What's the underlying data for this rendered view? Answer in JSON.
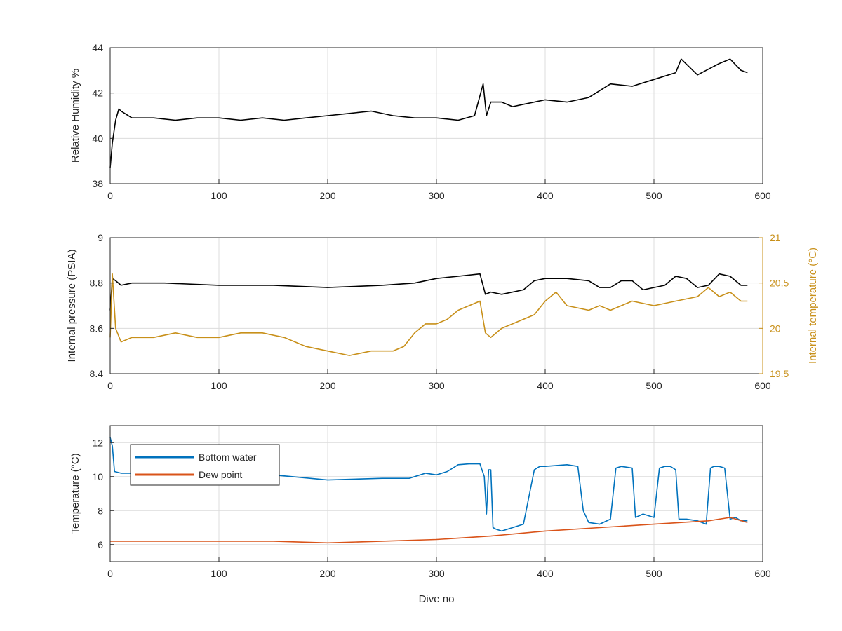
{
  "chart_data": [
    {
      "type": "line",
      "xlabel": "",
      "ylabel": "Relative Humidity %",
      "xlim": [
        0,
        600
      ],
      "ylim": [
        38,
        44
      ],
      "xticks": [
        0,
        100,
        200,
        300,
        400,
        500,
        600
      ],
      "yticks": [
        38,
        40,
        42,
        44
      ],
      "grid": true,
      "series": [
        {
          "color": "#000000",
          "x": [
            0,
            2,
            5,
            8,
            10,
            20,
            40,
            60,
            80,
            100,
            120,
            140,
            160,
            180,
            200,
            220,
            240,
            260,
            280,
            300,
            320,
            335,
            343,
            346,
            350,
            360,
            370,
            380,
            400,
            420,
            440,
            460,
            480,
            500,
            520,
            525,
            540,
            560,
            570,
            580,
            586
          ],
          "y": [
            38.7,
            39.8,
            40.8,
            41.3,
            41.2,
            40.9,
            40.9,
            40.8,
            40.9,
            40.9,
            40.8,
            40.9,
            40.8,
            40.9,
            41.0,
            41.1,
            41.2,
            41.0,
            40.9,
            40.9,
            40.8,
            41.0,
            42.4,
            41.0,
            41.6,
            41.6,
            41.4,
            41.5,
            41.7,
            41.6,
            41.8,
            42.4,
            42.3,
            42.6,
            42.9,
            43.5,
            42.8,
            43.3,
            43.5,
            43.0,
            42.9
          ]
        }
      ]
    },
    {
      "type": "line",
      "xlabel": "",
      "ylabel": "Internal pressure (PSIA)",
      "ylabel_right": "Internal temperature (°C)",
      "xlim": [
        0,
        600
      ],
      "ylim": [
        8.4,
        9.0
      ],
      "ylim_right": [
        19.5,
        21.0
      ],
      "xticks": [
        0,
        100,
        200,
        300,
        400,
        500,
        600
      ],
      "yticks": [
        8.4,
        8.6,
        8.8,
        9.0
      ],
      "yticks_right": [
        19.5,
        20,
        20.5,
        21
      ],
      "grid": true,
      "series": [
        {
          "color": "#000000",
          "axis": "left",
          "x": [
            0,
            2,
            5,
            10,
            20,
            50,
            100,
            150,
            200,
            250,
            280,
            300,
            320,
            340,
            345,
            350,
            360,
            380,
            390,
            400,
            420,
            440,
            450,
            460,
            470,
            480,
            490,
            500,
            510,
            520,
            530,
            540,
            550,
            560,
            570,
            580,
            586
          ],
          "y": [
            8.68,
            8.82,
            8.81,
            8.79,
            8.8,
            8.8,
            8.79,
            8.79,
            8.78,
            8.79,
            8.8,
            8.82,
            8.83,
            8.84,
            8.75,
            8.76,
            8.75,
            8.77,
            8.81,
            8.82,
            8.82,
            8.81,
            8.78,
            8.78,
            8.81,
            8.81,
            8.77,
            8.78,
            8.79,
            8.83,
            8.82,
            8.78,
            8.79,
            8.84,
            8.83,
            8.79,
            8.79
          ]
        },
        {
          "color": "#c8901a",
          "axis": "right",
          "x": [
            0,
            2,
            5,
            10,
            20,
            40,
            60,
            80,
            100,
            120,
            140,
            160,
            170,
            180,
            200,
            220,
            240,
            260,
            270,
            280,
            290,
            300,
            310,
            320,
            330,
            340,
            345,
            350,
            360,
            380,
            390,
            400,
            410,
            420,
            440,
            450,
            460,
            480,
            500,
            520,
            540,
            550,
            560,
            570,
            580,
            586
          ],
          "y": [
            19.9,
            20.6,
            20.0,
            19.85,
            19.9,
            19.9,
            19.95,
            19.9,
            19.9,
            19.95,
            19.95,
            19.9,
            19.85,
            19.8,
            19.75,
            19.7,
            19.75,
            19.75,
            19.8,
            19.95,
            20.05,
            20.05,
            20.1,
            20.2,
            20.25,
            20.3,
            19.95,
            19.9,
            20.0,
            20.1,
            20.15,
            20.3,
            20.4,
            20.25,
            20.2,
            20.25,
            20.2,
            20.3,
            20.25,
            20.3,
            20.35,
            20.45,
            20.35,
            20.4,
            20.3,
            20.3
          ]
        }
      ]
    },
    {
      "type": "line",
      "xlabel": "Dive no",
      "ylabel": "Temperature (°C)",
      "xlim": [
        0,
        600
      ],
      "ylim": [
        5,
        13
      ],
      "xticks": [
        0,
        100,
        200,
        300,
        400,
        500,
        600
      ],
      "yticks": [
        6,
        8,
        10,
        12
      ],
      "grid": true,
      "legend": "top-left",
      "series": [
        {
          "name": "Bottom water",
          "color": "#0072bd",
          "x": [
            0,
            2,
            4,
            10,
            50,
            100,
            150,
            200,
            250,
            275,
            290,
            300,
            310,
            320,
            330,
            340,
            344,
            346,
            348,
            350,
            352,
            355,
            360,
            380,
            390,
            395,
            400,
            420,
            430,
            435,
            440,
            450,
            460,
            465,
            470,
            480,
            483,
            490,
            500,
            505,
            510,
            515,
            520,
            523,
            530,
            540,
            548,
            552,
            555,
            560,
            565,
            570,
            575,
            580,
            586
          ],
          "y": [
            12.3,
            11.8,
            10.3,
            10.2,
            10.2,
            10.2,
            10.1,
            9.8,
            9.9,
            9.9,
            10.2,
            10.1,
            10.3,
            10.7,
            10.75,
            10.75,
            10.0,
            7.8,
            10.4,
            10.4,
            7.0,
            6.9,
            6.8,
            7.2,
            10.4,
            10.6,
            10.6,
            10.7,
            10.6,
            8.0,
            7.3,
            7.2,
            7.5,
            10.5,
            10.6,
            10.5,
            7.6,
            7.8,
            7.6,
            10.5,
            10.6,
            10.6,
            10.4,
            7.5,
            7.5,
            7.4,
            7.2,
            10.5,
            10.6,
            10.6,
            10.5,
            7.5,
            7.6,
            7.4,
            7.4
          ]
        },
        {
          "name": "Dew point",
          "color": "#d95319",
          "x": [
            0,
            50,
            100,
            150,
            200,
            250,
            300,
            350,
            400,
            450,
            500,
            550,
            570,
            586
          ],
          "y": [
            6.2,
            6.2,
            6.2,
            6.2,
            6.1,
            6.2,
            6.3,
            6.5,
            6.8,
            7.0,
            7.2,
            7.4,
            7.6,
            7.3
          ]
        }
      ]
    }
  ]
}
